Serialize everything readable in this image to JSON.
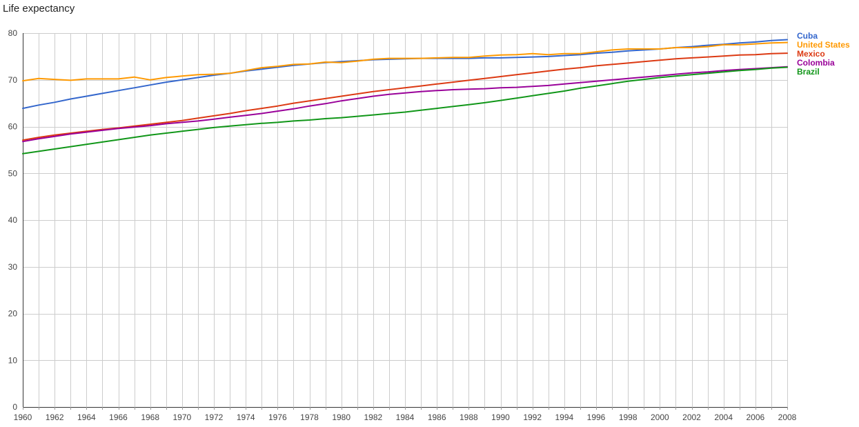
{
  "chart_data": {
    "type": "line",
    "title": "Life expectancy",
    "xlabel": "",
    "ylabel": "",
    "xlim": [
      1960,
      2008
    ],
    "ylim": [
      0,
      80
    ],
    "x_ticks": [
      1960,
      1962,
      1964,
      1966,
      1968,
      1970,
      1972,
      1974,
      1976,
      1978,
      1980,
      1982,
      1984,
      1986,
      1988,
      1990,
      1992,
      1994,
      1996,
      1998,
      2000,
      2002,
      2004,
      2006,
      2008
    ],
    "y_ticks": [
      0,
      10,
      20,
      30,
      40,
      50,
      60,
      70,
      80
    ],
    "grid": true,
    "legend_position": "right",
    "x": [
      1960,
      1961,
      1962,
      1963,
      1964,
      1965,
      1966,
      1967,
      1968,
      1969,
      1970,
      1971,
      1972,
      1973,
      1974,
      1975,
      1976,
      1977,
      1978,
      1979,
      1980,
      1981,
      1982,
      1983,
      1984,
      1985,
      1986,
      1987,
      1988,
      1989,
      1990,
      1991,
      1992,
      1993,
      1994,
      1995,
      1996,
      1997,
      1998,
      1999,
      2000,
      2001,
      2002,
      2003,
      2004,
      2005,
      2006,
      2007,
      2008
    ],
    "series": [
      {
        "name": "Cuba",
        "color": "#3366cc",
        "values": [
          63.9,
          64.6,
          65.2,
          65.9,
          66.5,
          67.1,
          67.7,
          68.3,
          68.9,
          69.5,
          70.0,
          70.5,
          71.0,
          71.4,
          71.9,
          72.3,
          72.7,
          73.1,
          73.4,
          73.7,
          73.9,
          74.1,
          74.3,
          74.4,
          74.5,
          74.6,
          74.6,
          74.6,
          74.6,
          74.7,
          74.7,
          74.8,
          74.9,
          75.0,
          75.2,
          75.4,
          75.7,
          75.9,
          76.2,
          76.4,
          76.6,
          76.9,
          77.1,
          77.4,
          77.6,
          77.9,
          78.1,
          78.4,
          78.6
        ]
      },
      {
        "name": "United States",
        "color": "#ff9900",
        "values": [
          69.8,
          70.3,
          70.1,
          69.9,
          70.2,
          70.2,
          70.2,
          70.6,
          70.0,
          70.5,
          70.8,
          71.1,
          71.2,
          71.4,
          72.0,
          72.6,
          72.9,
          73.3,
          73.4,
          73.8,
          73.7,
          74.0,
          74.4,
          74.6,
          74.6,
          74.6,
          74.7,
          74.8,
          74.8,
          75.1,
          75.3,
          75.4,
          75.6,
          75.4,
          75.6,
          75.6,
          76.0,
          76.4,
          76.6,
          76.6,
          76.6,
          76.9,
          76.9,
          77.1,
          77.5,
          77.5,
          77.7,
          77.9,
          78.0
        ]
      },
      {
        "name": "Mexico",
        "color": "#dc3912",
        "values": [
          57.1,
          57.7,
          58.2,
          58.6,
          59.0,
          59.4,
          59.7,
          60.1,
          60.5,
          60.9,
          61.3,
          61.8,
          62.3,
          62.8,
          63.4,
          63.9,
          64.4,
          65.0,
          65.5,
          66.0,
          66.5,
          67.0,
          67.5,
          67.9,
          68.3,
          68.7,
          69.1,
          69.5,
          69.9,
          70.3,
          70.7,
          71.1,
          71.5,
          71.9,
          72.3,
          72.6,
          73.0,
          73.3,
          73.6,
          73.9,
          74.2,
          74.5,
          74.7,
          74.9,
          75.1,
          75.3,
          75.4,
          75.6,
          75.7
        ]
      },
      {
        "name": "Colombia",
        "color": "#990099",
        "values": [
          56.8,
          57.4,
          57.9,
          58.4,
          58.8,
          59.2,
          59.6,
          59.9,
          60.2,
          60.6,
          60.9,
          61.2,
          61.6,
          62.0,
          62.4,
          62.8,
          63.3,
          63.8,
          64.4,
          64.9,
          65.5,
          66.0,
          66.5,
          66.9,
          67.2,
          67.5,
          67.7,
          67.9,
          68.0,
          68.1,
          68.3,
          68.4,
          68.6,
          68.8,
          69.1,
          69.4,
          69.7,
          70.0,
          70.3,
          70.6,
          70.9,
          71.2,
          71.5,
          71.7,
          72.0,
          72.2,
          72.4,
          72.6,
          72.8
        ]
      },
      {
        "name": "Brazil",
        "color": "#109618",
        "values": [
          54.2,
          54.7,
          55.2,
          55.7,
          56.2,
          56.7,
          57.2,
          57.7,
          58.2,
          58.6,
          59.0,
          59.4,
          59.8,
          60.1,
          60.4,
          60.7,
          60.9,
          61.2,
          61.4,
          61.7,
          61.9,
          62.2,
          62.5,
          62.8,
          63.1,
          63.5,
          63.9,
          64.3,
          64.7,
          65.1,
          65.6,
          66.1,
          66.6,
          67.1,
          67.6,
          68.2,
          68.7,
          69.2,
          69.7,
          70.1,
          70.5,
          70.8,
          71.1,
          71.4,
          71.7,
          72.0,
          72.2,
          72.5,
          72.7
        ]
      }
    ]
  }
}
